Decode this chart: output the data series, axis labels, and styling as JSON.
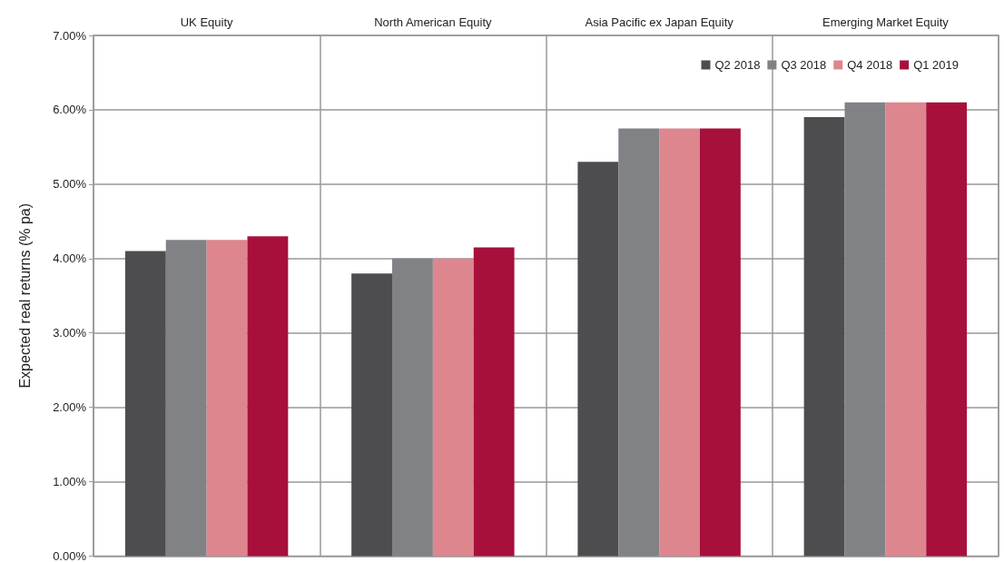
{
  "chart_data": {
    "type": "bar",
    "ylabel": "Expected real returns (% pa)",
    "categories": [
      "UK Equity",
      "North American Equity",
      "Asia Pacific ex Japan Equity",
      "Emerging Market Equity"
    ],
    "series": [
      {
        "name": "Q2 2018",
        "color": "#4d4d50",
        "values": [
          4.1,
          3.8,
          5.3,
          5.9
        ]
      },
      {
        "name": "Q3 2018",
        "color": "#818286",
        "values": [
          4.25,
          4.0,
          5.75,
          6.1
        ]
      },
      {
        "name": "Q4 2018",
        "color": "#dd868e",
        "values": [
          4.25,
          4.0,
          5.75,
          6.1
        ]
      },
      {
        "name": "Q1 2019",
        "color": "#a8103c",
        "values": [
          4.3,
          4.15,
          5.75,
          6.1
        ]
      }
    ],
    "ylim": [
      0,
      7
    ],
    "yticks": [
      {
        "value": 0,
        "label": "0.00%"
      },
      {
        "value": 1,
        "label": "1.00%"
      },
      {
        "value": 2,
        "label": "2.00%"
      },
      {
        "value": 3,
        "label": "3.00%"
      },
      {
        "value": 4,
        "label": "4.00%"
      },
      {
        "value": 5,
        "label": "5.00%"
      },
      {
        "value": 6,
        "label": "6.00%"
      },
      {
        "value": 7,
        "label": "7.00%"
      }
    ],
    "grid": true,
    "legend": "top right"
  }
}
